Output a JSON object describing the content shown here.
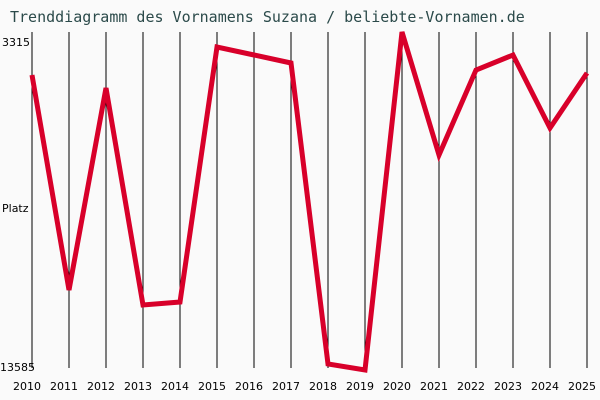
{
  "title": "Trenddiagramm des Vornamens Suzana / beliebte-Vornamen.de",
  "y_axis": {
    "top_label": "3315",
    "mid_label": "Platz",
    "bottom_label": "13585"
  },
  "colors": {
    "line": "#d8002a",
    "grid": "#000000",
    "background": "#fafafa",
    "title": "#2b4a4a"
  },
  "chart_data": {
    "type": "line",
    "title": "Trenddiagramm des Vornamens Suzana / beliebte-Vornamen.de",
    "xlabel": "",
    "ylabel": "Platz",
    "ylim": [
      13585,
      3315
    ],
    "y_inverted": true,
    "grid": "vertical",
    "legend": null,
    "categories": [
      "2010",
      "2011",
      "2012",
      "2013",
      "2014",
      "2015",
      "2016",
      "2017",
      "2018",
      "2019",
      "2020",
      "2021",
      "2022",
      "2023",
      "2024",
      "2025"
    ],
    "series": [
      {
        "name": "Suzana",
        "values": [
          4355,
          11127,
          4764,
          11600,
          11505,
          3473,
          3725,
          3977,
          13458,
          13647,
          3000,
          6875,
          4197,
          3725,
          6024,
          4292
        ]
      }
    ]
  }
}
